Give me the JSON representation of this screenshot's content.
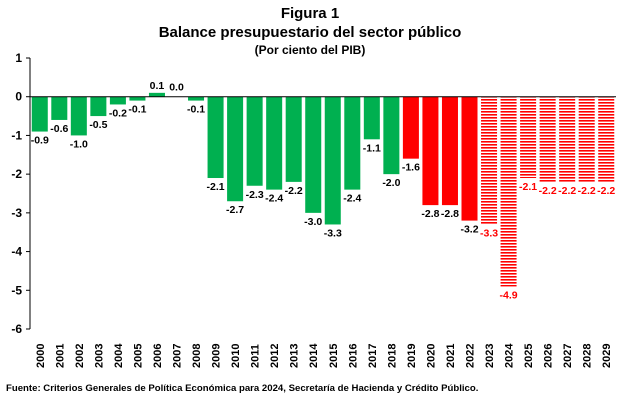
{
  "chart_data": {
    "type": "bar",
    "title": "Figura 1",
    "subtitle": "Balance presupuestario del sector público",
    "unit_note": "(Por ciento del PIB)",
    "categories": [
      "2000",
      "2001",
      "2002",
      "2003",
      "2004",
      "2005",
      "2006",
      "2007",
      "2008",
      "2009",
      "2010",
      "2011",
      "2012",
      "2013",
      "2014",
      "2015",
      "2016",
      "2017",
      "2018",
      "2019",
      "2020",
      "2021",
      "2022",
      "2023",
      "2024",
      "2025",
      "2026",
      "2027",
      "2028",
      "2029"
    ],
    "values": [
      -0.9,
      -0.6,
      -1.0,
      -0.5,
      -0.2,
      -0.1,
      0.1,
      0.0,
      -0.1,
      -2.1,
      -2.7,
      -2.3,
      -2.4,
      -2.2,
      -3.0,
      -3.3,
      -2.4,
      -1.1,
      -2.0,
      -1.6,
      -2.8,
      -2.8,
      -3.2,
      -3.3,
      -4.9,
      -2.1,
      -2.2,
      -2.2,
      -2.2,
      -2.2
    ],
    "data_labels": [
      "-0.9",
      "-0.6",
      "-1.0",
      "-0.5",
      "-0.2",
      "-0.1",
      "0.1",
      "0.0",
      "-0.1",
      "-2.1",
      "-2.7",
      "-2.3",
      "-2.4",
      "-2.2",
      "-3.0",
      "-3.3",
      "-2.4",
      "-1.1",
      "-2.0",
      "-1.6",
      "-2.8",
      "-2.8",
      "-3.2",
      "-3.3",
      "-4.9",
      "-2.1",
      "-2.2",
      "-2.2",
      "-2.2",
      "-2.2"
    ],
    "bar_style": [
      "green",
      "green",
      "green",
      "green",
      "green",
      "green",
      "green",
      "green",
      "green",
      "green",
      "green",
      "green",
      "green",
      "green",
      "green",
      "green",
      "green",
      "green",
      "green",
      "red",
      "red",
      "red",
      "red",
      "red-hatched",
      "red-hatched",
      "red-hatched",
      "red-hatched",
      "red-hatched",
      "red-hatched",
      "red-hatched"
    ],
    "ylim": [
      -6,
      1
    ],
    "yticks": [
      1,
      0,
      -1,
      -2,
      -3,
      -4,
      -5,
      -6
    ],
    "ytick_labels": [
      "1",
      "0",
      "-1",
      "-2",
      "-3",
      "-4",
      "-5",
      "-6"
    ],
    "grid": false,
    "colors": {
      "green": "#00B050",
      "red": "#FF0000",
      "label_projected": "#FF0000",
      "label_default": "#000000"
    }
  },
  "source": "Fuente: Criterios Generales de Política Económica para 2024, Secretaría de Hacienda y Crédito Público."
}
